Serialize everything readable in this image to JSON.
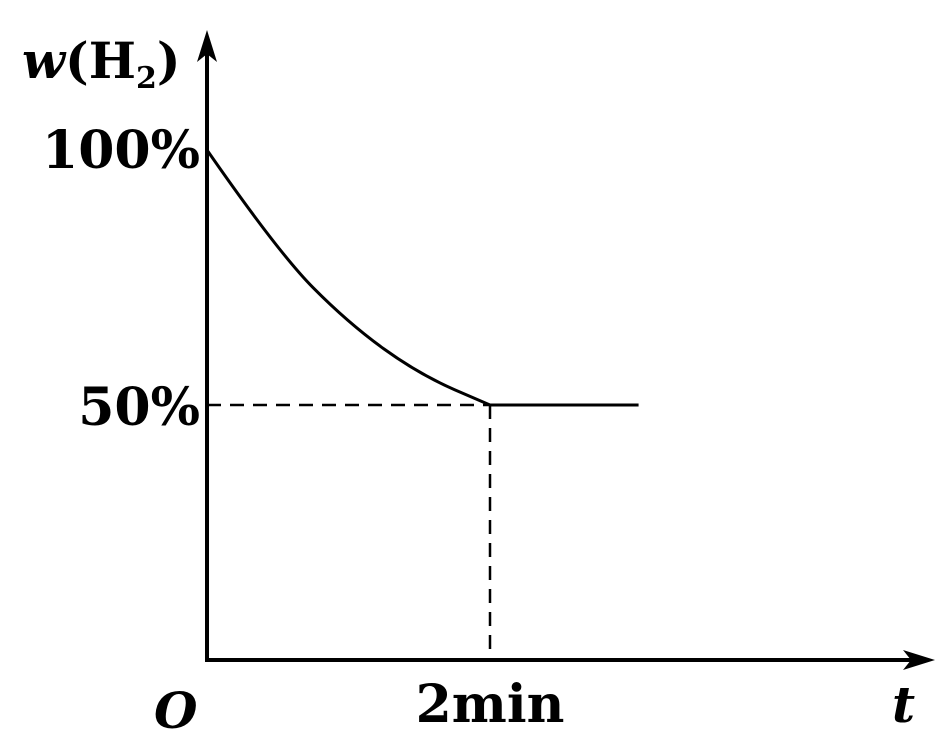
{
  "chart_data": {
    "type": "line",
    "y_axis": {
      "symbol": "w",
      "species": "H",
      "subscript": "2"
    },
    "x_axis": {
      "symbol": "t"
    },
    "origin_label": "O",
    "ylim": [
      0,
      100
    ],
    "y_ticks": [
      {
        "value": 100,
        "label": "100%"
      },
      {
        "value": 50,
        "label": "50%"
      }
    ],
    "x_ticks": [
      {
        "value": 2,
        "label": "2min"
      }
    ],
    "series": [
      {
        "points": [
          {
            "x": 0,
            "y": 100
          },
          {
            "x": 0.5,
            "y": 80
          },
          {
            "x": 1.0,
            "y": 66
          },
          {
            "x": 1.5,
            "y": 56
          },
          {
            "x": 2,
            "y": 50
          },
          {
            "x": 3.05,
            "y": 50
          }
        ]
      }
    ],
    "reference_lines": {
      "value_x": 2,
      "value_y": 50,
      "style": "dashed"
    },
    "grid": false,
    "legend": "none"
  }
}
